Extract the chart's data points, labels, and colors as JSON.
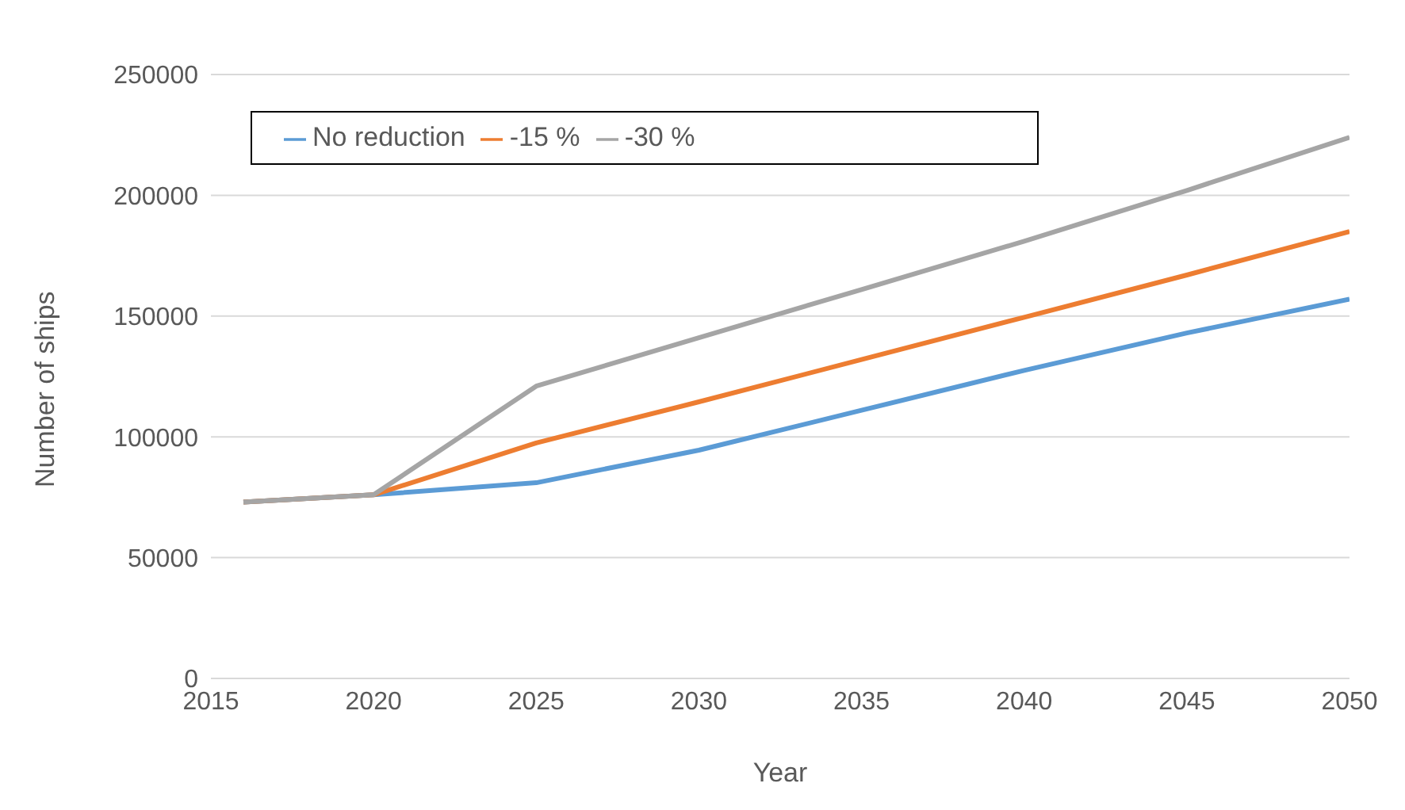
{
  "chart_data": {
    "type": "line",
    "xlabel": "Year",
    "ylabel": "Number of ships",
    "x": [
      2016,
      2020,
      2025,
      2030,
      2035,
      2040,
      2045,
      2050
    ],
    "series": [
      {
        "name": "No reduction",
        "color": "#5b9bd5",
        "values": [
          73000,
          76000,
          81000,
          94500,
          111000,
          127500,
          143000,
          157000
        ]
      },
      {
        "name": "-15 %",
        "color": "#ed7d31",
        "values": [
          73000,
          76000,
          97500,
          114500,
          132000,
          149500,
          167000,
          185000
        ]
      },
      {
        "name": "-30 %",
        "color": "#a5a5a5",
        "values": [
          73000,
          76000,
          121000,
          141000,
          161000,
          181000,
          202000,
          224000
        ]
      }
    ],
    "xlim": [
      2015,
      2050
    ],
    "xticks": [
      2015,
      2020,
      2025,
      2030,
      2035,
      2040,
      2045,
      2050
    ],
    "ylim": [
      0,
      250000
    ],
    "yticks": [
      0,
      50000,
      100000,
      150000,
      200000,
      250000
    ],
    "grid": "y",
    "legend": "top left",
    "marker": "none",
    "line_style": "solid"
  }
}
